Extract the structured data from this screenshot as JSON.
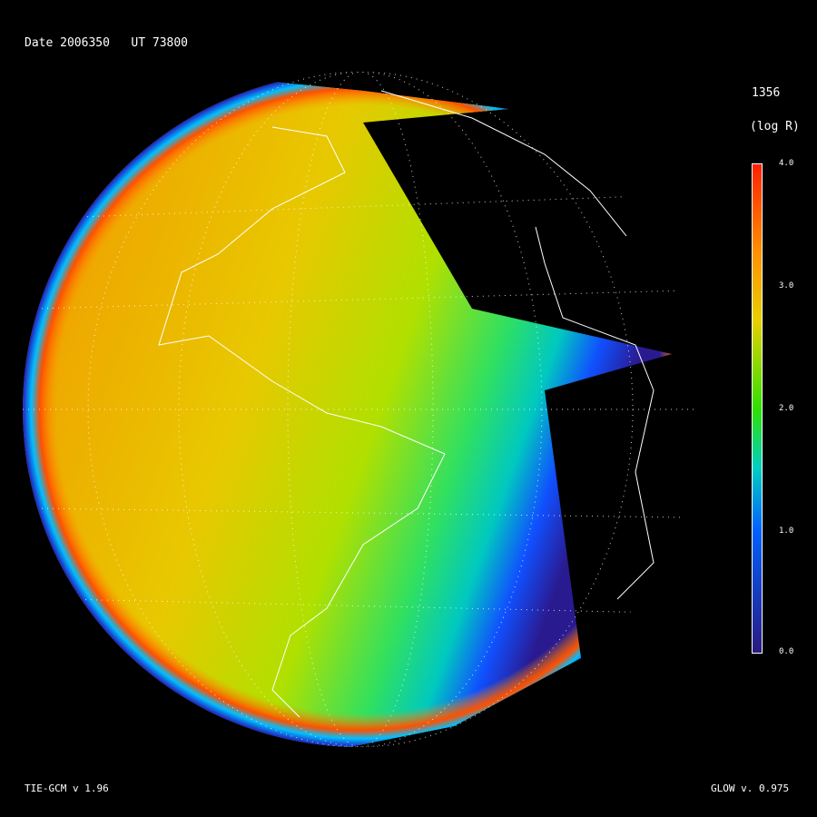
{
  "header": {
    "date_label": "Date 2006350   UT 73800"
  },
  "colorbar": {
    "title": "1356",
    "units": "(log R)",
    "ticks": [
      "4.0",
      "3.0",
      "2.0",
      "1.0",
      "0.0"
    ],
    "range": [
      0.0,
      4.0
    ],
    "colors": [
      "#ff2000",
      "#ff9000",
      "#e8d000",
      "#30e000",
      "#00d0c0",
      "#0060ff",
      "#2a1a80"
    ]
  },
  "footer": {
    "model_left": "TIE-GCM v 1.96",
    "model_right": "GLOW v. 0.975"
  }
}
